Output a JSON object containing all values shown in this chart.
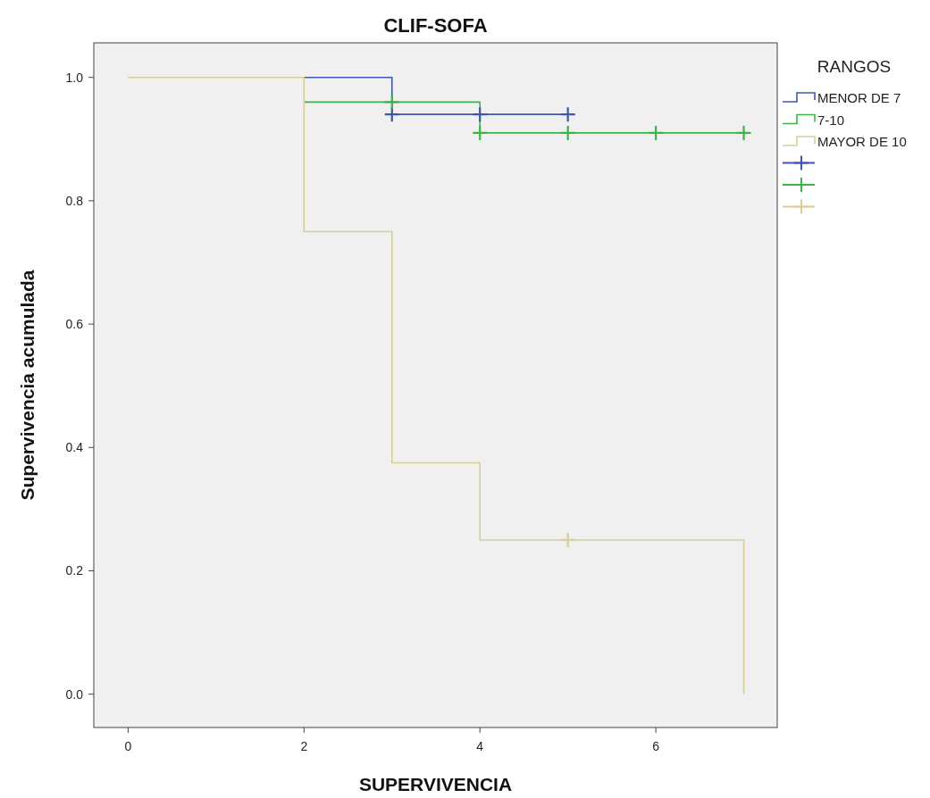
{
  "chart_data": {
    "type": "step",
    "title": "CLIF-SOFA",
    "xlabel": "SUPERVIVENCIA",
    "ylabel": "Supervivencia acumulada",
    "legend_title": "RANGOS",
    "legend": "top right",
    "grid": false,
    "xlim": [
      -0.39,
      7.38
    ],
    "xticks": [
      0,
      2,
      4,
      6
    ],
    "ylim": [
      -0.054,
      1.056
    ],
    "yticks": [
      {
        "value": 0,
        "label": "0.0"
      },
      {
        "value": 0.2,
        "label": "0.2"
      },
      {
        "value": 0.4,
        "label": "0.4"
      },
      {
        "value": 0.6,
        "label": "0.6"
      },
      {
        "value": 0.8,
        "label": "0.8"
      },
      {
        "value": 1,
        "label": "1.0"
      }
    ],
    "series": [
      {
        "name": "MENOR DE 7",
        "color": "#3f56b0",
        "x": [
          2,
          3,
          5
        ],
        "values": [
          1,
          0.94,
          0.94
        ]
      },
      {
        "name": "7-10",
        "color": "#3cb44a",
        "x": [
          2,
          4,
          7
        ],
        "values": [
          0.96,
          0.91,
          0.91
        ]
      },
      {
        "name": "MAYOR DE 10",
        "color": "#d6cf9a",
        "x": [
          0,
          2,
          3,
          4,
          7
        ],
        "values": [
          1,
          0.75,
          0.375,
          0.25,
          0
        ]
      },
      {
        "type": "scatter",
        "marker": "cross",
        "color": "#3f56b0",
        "x": [
          3,
          4,
          5
        ],
        "values": [
          0.94,
          0.94,
          0.94
        ]
      },
      {
        "type": "scatter",
        "marker": "cross",
        "color": "#3cb44a",
        "x": [
          3,
          4,
          5,
          6,
          7
        ],
        "values": [
          0.96,
          0.91,
          0.91,
          0.91,
          0.91
        ]
      },
      {
        "type": "scatter",
        "marker": "cross",
        "color": "#d6cf9a",
        "x": [
          5
        ],
        "values": [
          0.25
        ]
      }
    ]
  }
}
